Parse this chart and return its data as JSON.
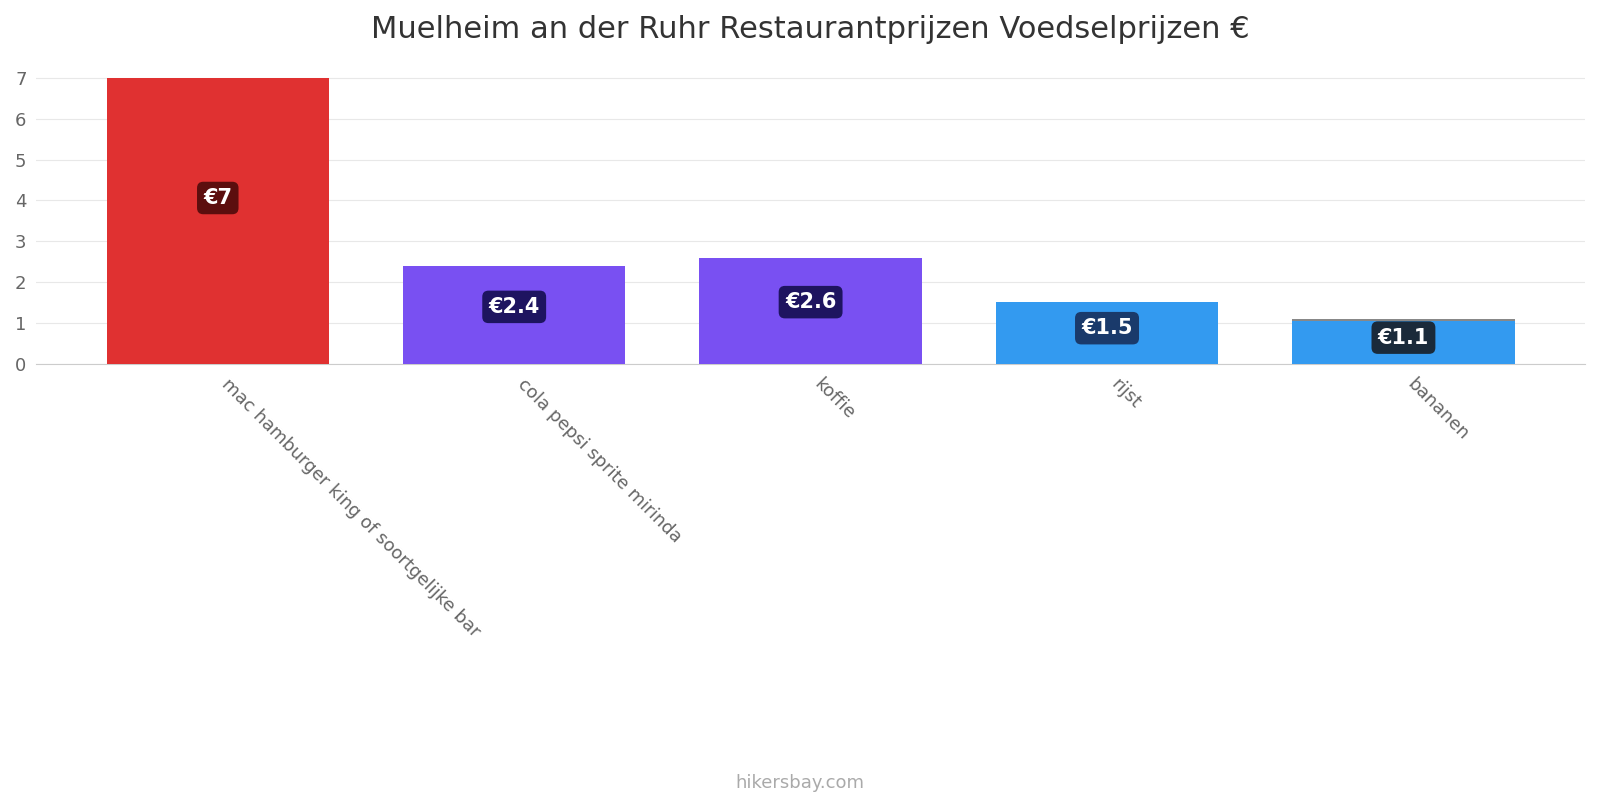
{
  "title": "Muelheim an der Ruhr Restaurantprijzen Voedselprijzen €",
  "categories": [
    "mac hamburger king of soortgelijke bar",
    "cola pepsi sprite mirinda",
    "koffie",
    "rijst",
    "bananen"
  ],
  "values": [
    7,
    2.4,
    2.6,
    1.5,
    1.1
  ],
  "bar_colors": [
    "#e03131",
    "#7950f2",
    "#7950f2",
    "#339af0",
    "#339af0"
  ],
  "label_box_colors": [
    "#5c0e0e",
    "#1e1460",
    "#1e1460",
    "#1a3a6b",
    "#1a2a3a"
  ],
  "cap_color": "#888888",
  "labels": [
    "€7",
    "€2.4",
    "€2.6",
    "€1.5",
    "€1.1"
  ],
  "ylim": [
    0,
    7.3
  ],
  "yticks": [
    0,
    1,
    2,
    3,
    4,
    5,
    6,
    7
  ],
  "footer": "hikersbay.com",
  "title_fontsize": 22,
  "tick_label_fontsize": 13,
  "label_fontsize": 15,
  "footer_fontsize": 13,
  "background_color": "#ffffff",
  "grid_color": "#e8e8e8",
  "bar_width": 0.75
}
